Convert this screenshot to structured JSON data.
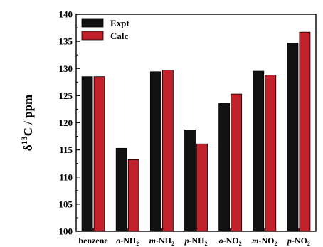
{
  "chart_data": {
    "type": "bar",
    "categories": [
      {
        "prefix": "",
        "base": "benzene",
        "sub": ""
      },
      {
        "prefix": "o",
        "base": "-NH",
        "sub": "2"
      },
      {
        "prefix": "m",
        "base": "-NH",
        "sub": "2"
      },
      {
        "prefix": "p",
        "base": "-NH",
        "sub": "2"
      },
      {
        "prefix": "o",
        "base": "-NO",
        "sub": "2"
      },
      {
        "prefix": "m",
        "base": "-NO",
        "sub": "2"
      },
      {
        "prefix": "p",
        "base": "-NO",
        "sub": "2"
      }
    ],
    "series": [
      {
        "name": "Expt",
        "color": "#111111",
        "values": [
          128.5,
          115.3,
          129.4,
          118.7,
          123.6,
          129.5,
          134.7
        ]
      },
      {
        "name": "Calc",
        "color": "#c0212a",
        "values": [
          128.5,
          113.2,
          129.7,
          116.1,
          125.3,
          128.8,
          136.7
        ]
      }
    ],
    "ylabel": {
      "prefix": "δ",
      "sup": "13",
      "rest": "C / ppm"
    },
    "ylim": [
      100,
      140
    ],
    "yticks": [
      100,
      105,
      110,
      115,
      120,
      125,
      130,
      135,
      140
    ],
    "grid": false,
    "legend_position": "top-left"
  }
}
